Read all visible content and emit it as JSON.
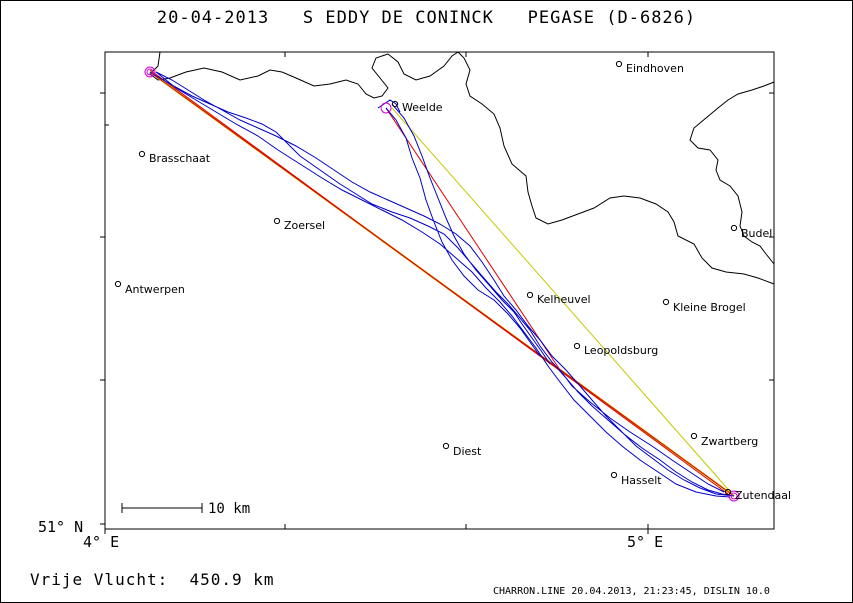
{
  "header": {
    "title": "20-04-2013   S EDDY DE CONINCK   PEGASE (D-6826)"
  },
  "axes": {
    "lat_label": "51° N",
    "lon_labels": [
      "4° E",
      "5° E"
    ]
  },
  "scale_bar": {
    "label": "10 km"
  },
  "cities": [
    {
      "name": "Eindhoven"
    },
    {
      "name": "Weelde"
    },
    {
      "name": "Brasschaat"
    },
    {
      "name": "Zoersel"
    },
    {
      "name": "Budel"
    },
    {
      "name": "Antwerpen"
    },
    {
      "name": "Kelheuvel"
    },
    {
      "name": "Kleine Brogel"
    },
    {
      "name": "Leopoldsburg"
    },
    {
      "name": "Zwartberg"
    },
    {
      "name": "Diest"
    },
    {
      "name": "Hasselt"
    },
    {
      "name": "Zutendaal"
    }
  ],
  "footer": {
    "distance": "Vrije Vlucht:  450.9 km",
    "credit": "CHARRON.LINE 20.04.2013, 21:23:45, DISLIN 10.0"
  },
  "colors": {
    "track": "#0000cc",
    "route_red": "#e00000",
    "route_yellow": "#c8c800",
    "turnpoint": "#cc00cc",
    "border": "#000000"
  }
}
